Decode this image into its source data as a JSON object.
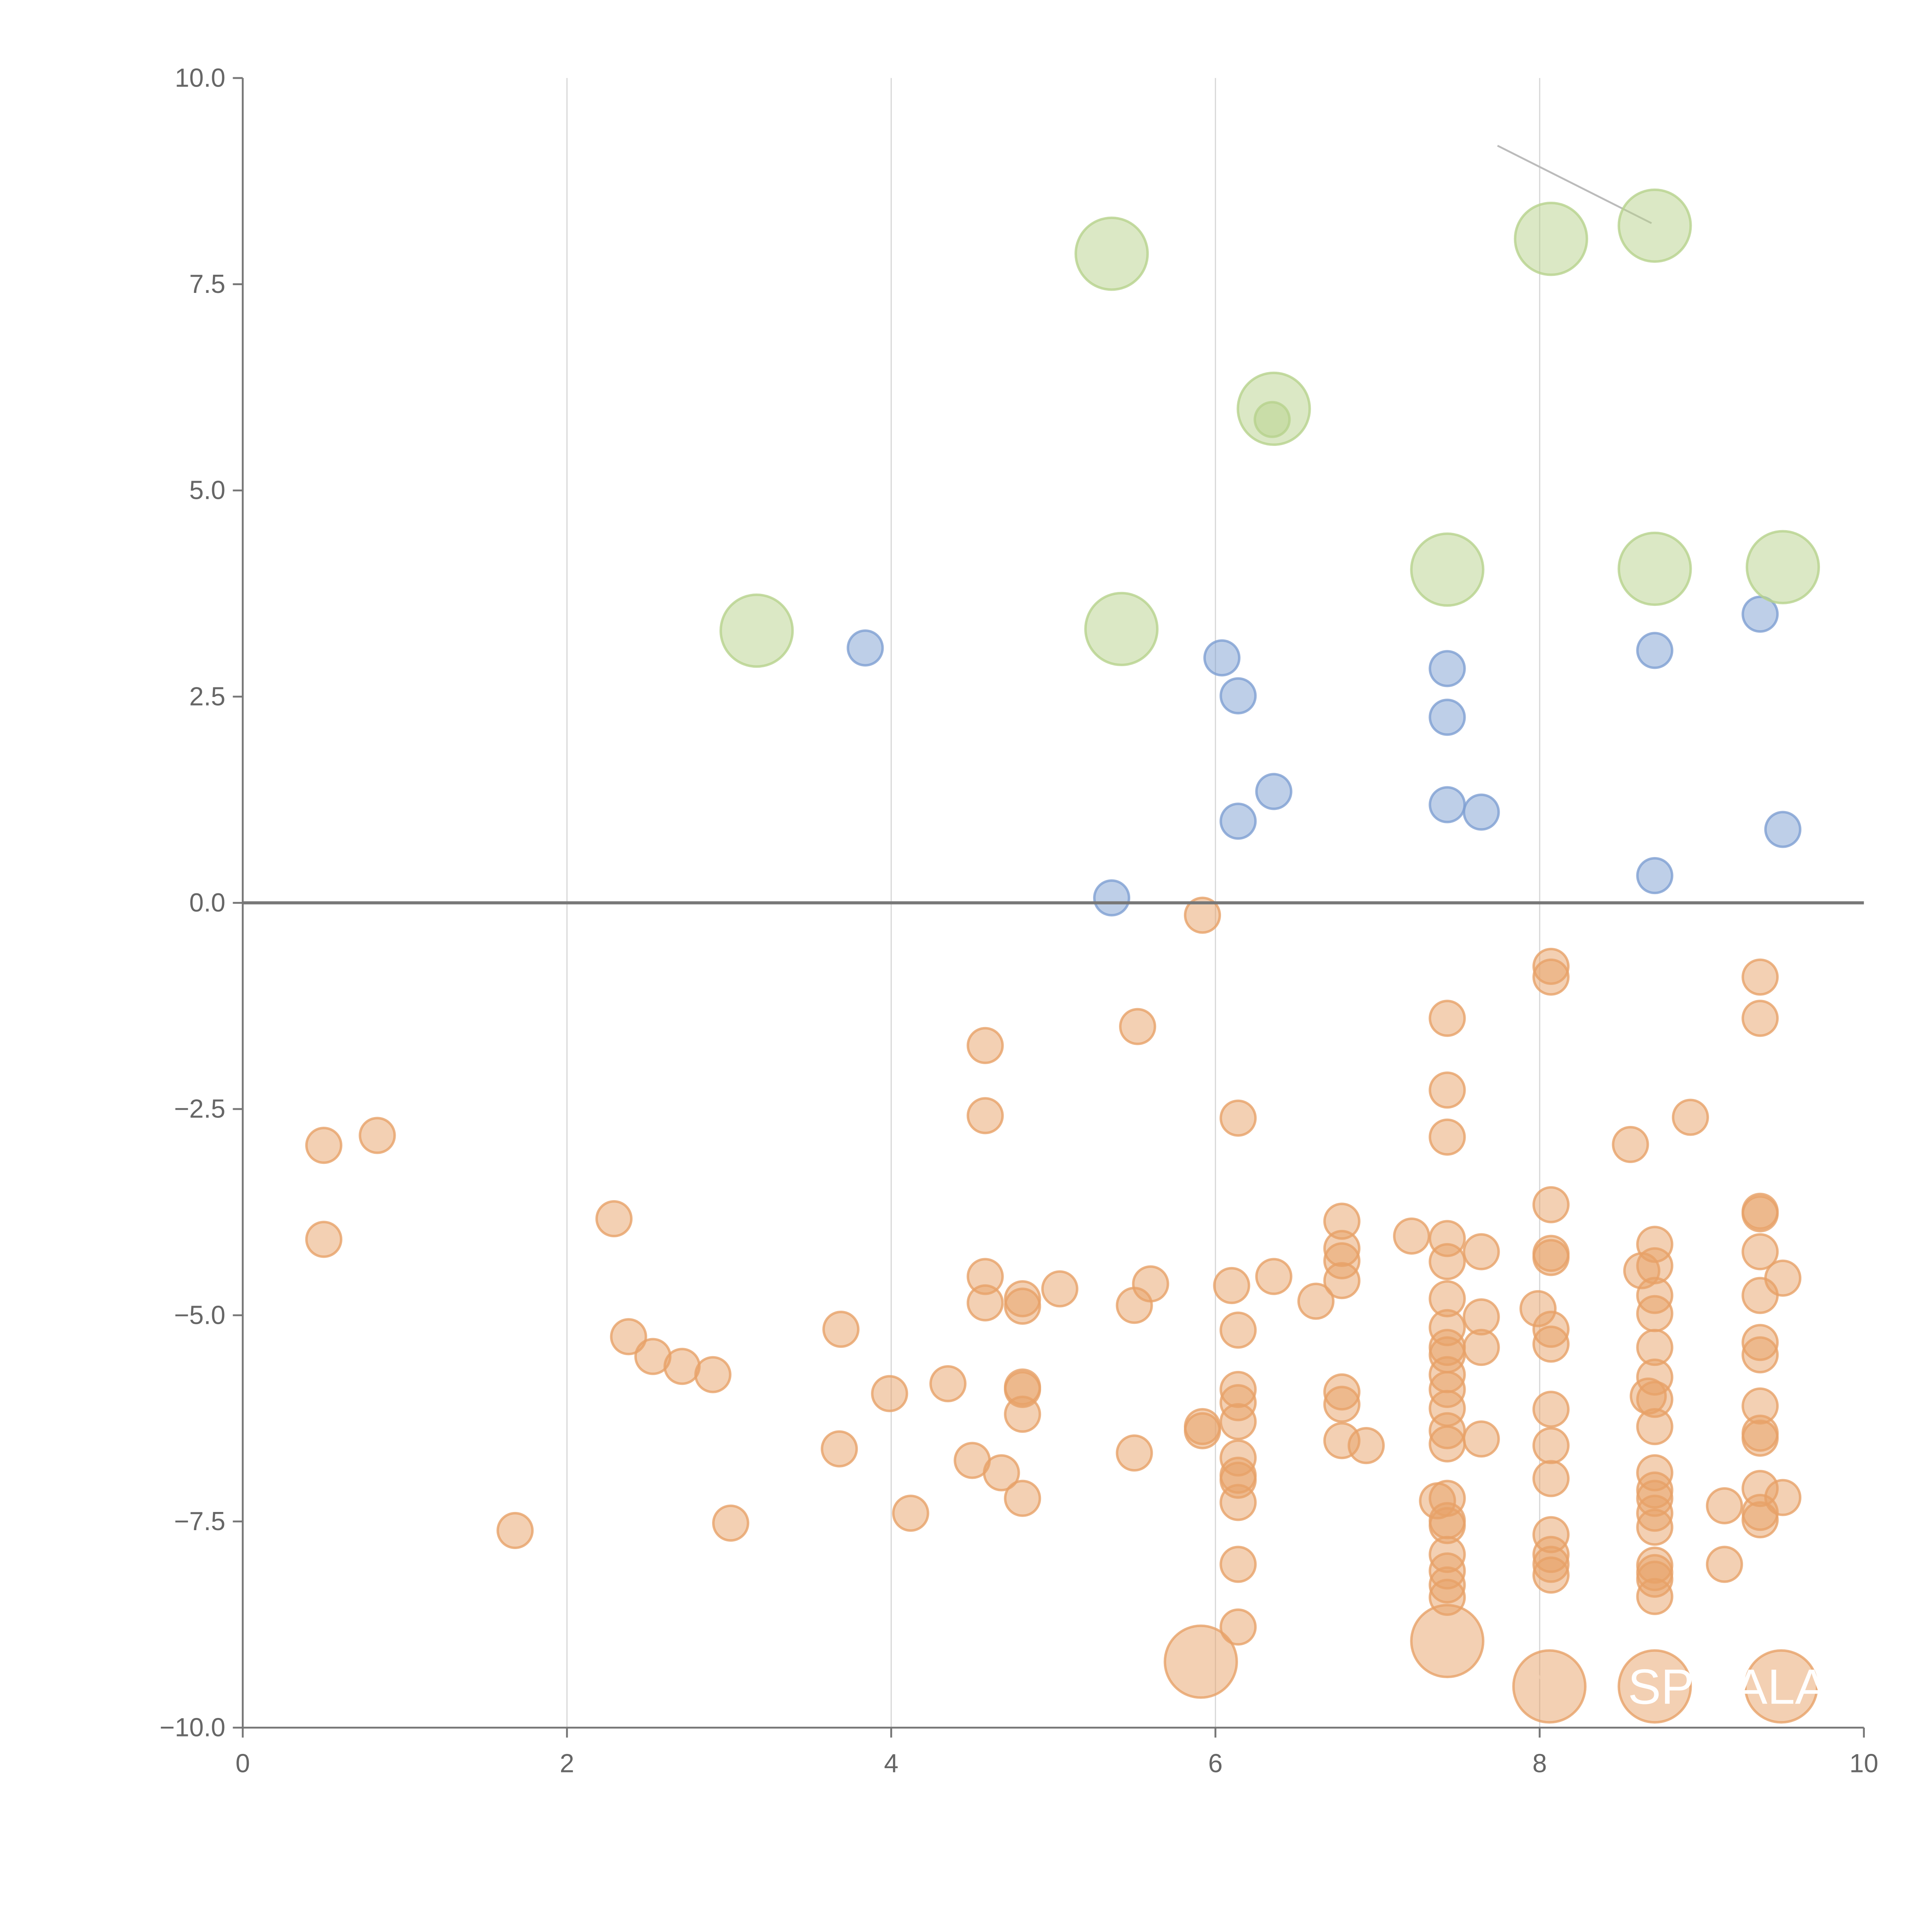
{
  "chart_data": {
    "type": "scatter",
    "title": "",
    "xlabel": "",
    "ylabel": "",
    "xlim": [
      0,
      10
    ],
    "ylim": [
      -10,
      10
    ],
    "grid": "vertical",
    "xticks": [
      "0",
      "2",
      "4",
      "6",
      "8",
      "10"
    ],
    "xtick_values": [
      0,
      2,
      4,
      6,
      8,
      10
    ],
    "yticks": [
      "10.0",
      "7.5",
      "5.0",
      "2.5",
      "0.0",
      "−2.5",
      "−5.0",
      "−7.5",
      "−10.0"
    ],
    "ytick_values": [
      10,
      7.5,
      5,
      2.5,
      0,
      -2.5,
      -5,
      -7.5,
      -10
    ],
    "colors": {
      "blue": "#7e9fd2",
      "green": "#b7d28c",
      "orange": "#e7a168",
      "axis": "#777777",
      "grid": "#d9d9d9"
    },
    "series": [
      {
        "name": "blue",
        "size": "small",
        "points": [
          [
            3.84,
            3.09
          ],
          [
            6.04,
            2.97
          ],
          [
            6.14,
            2.51
          ],
          [
            6.36,
            1.35
          ],
          [
            6.14,
            0.99
          ],
          [
            7.43,
            2.84
          ],
          [
            7.43,
            2.25
          ],
          [
            7.43,
            1.19
          ],
          [
            7.64,
            1.1
          ],
          [
            8.71,
            3.06
          ],
          [
            8.71,
            0.33
          ],
          [
            9.36,
            3.5
          ],
          [
            9.5,
            0.89
          ],
          [
            5.36,
            0.06
          ]
        ]
      },
      {
        "name": "green",
        "size": "large",
        "points": [
          [
            5.36,
            7.87
          ],
          [
            8.07,
            8.05
          ],
          [
            8.71,
            8.21
          ],
          [
            6.36,
            5.99
          ],
          [
            7.43,
            4.04
          ],
          [
            8.71,
            4.05
          ],
          [
            9.5,
            4.07
          ],
          [
            3.17,
            3.3
          ],
          [
            5.42,
            3.32
          ]
        ]
      },
      {
        "name": "green",
        "size": "small",
        "points": [
          [
            6.35,
            5.86
          ]
        ]
      },
      {
        "name": "orange",
        "size": "large",
        "points": [
          [
            5.91,
            -9.2
          ],
          [
            7.43,
            -8.95
          ],
          [
            8.06,
            -9.5
          ],
          [
            8.71,
            -9.5
          ],
          [
            9.49,
            -9.5
          ]
        ]
      },
      {
        "name": "orange",
        "size": "small",
        "points": [
          [
            5.92,
            -0.15
          ],
          [
            0.5,
            -2.94
          ],
          [
            0.83,
            -2.82
          ],
          [
            0.5,
            -4.08
          ],
          [
            2.29,
            -3.83
          ],
          [
            2.38,
            -5.26
          ],
          [
            2.53,
            -5.5
          ],
          [
            2.71,
            -5.62
          ],
          [
            2.9,
            -5.72
          ],
          [
            1.68,
            -7.61
          ],
          [
            3.01,
            -7.52
          ],
          [
            3.69,
            -5.17
          ],
          [
            3.68,
            -6.62
          ],
          [
            3.99,
            -5.95
          ],
          [
            4.35,
            -5.83
          ],
          [
            4.12,
            -7.4
          ],
          [
            4.5,
            -6.76
          ],
          [
            4.68,
            -6.91
          ],
          [
            4.58,
            -1.73
          ],
          [
            4.58,
            -2.58
          ],
          [
            4.58,
            -4.53
          ],
          [
            4.58,
            -4.85
          ],
          [
            4.81,
            -4.8
          ],
          [
            4.81,
            -4.89
          ],
          [
            4.81,
            -5.87
          ],
          [
            4.81,
            -5.9
          ],
          [
            4.81,
            -6.2
          ],
          [
            4.81,
            -7.22
          ],
          [
            5.04,
            -4.68
          ],
          [
            5.52,
            -1.5
          ],
          [
            5.5,
            -4.88
          ],
          [
            5.6,
            -4.62
          ],
          [
            5.5,
            -6.67
          ],
          [
            5.92,
            -6.35
          ],
          [
            5.92,
            -6.4
          ],
          [
            6.14,
            -2.61
          ],
          [
            6.1,
            -4.64
          ],
          [
            6.14,
            -5.18
          ],
          [
            6.14,
            -5.9
          ],
          [
            6.14,
            -6.06
          ],
          [
            6.14,
            -6.29
          ],
          [
            6.14,
            -6.73
          ],
          [
            6.14,
            -6.94
          ],
          [
            6.14,
            -7.0
          ],
          [
            6.14,
            -7.27
          ],
          [
            6.14,
            -8.02
          ],
          [
            6.14,
            -8.78
          ],
          [
            6.36,
            -4.53
          ],
          [
            6.62,
            -4.83
          ],
          [
            6.78,
            -3.86
          ],
          [
            6.78,
            -4.19
          ],
          [
            6.78,
            -4.34
          ],
          [
            6.78,
            -4.58
          ],
          [
            6.78,
            -5.93
          ],
          [
            6.78,
            -6.08
          ],
          [
            6.78,
            -6.52
          ],
          [
            6.93,
            -6.58
          ],
          [
            7.21,
            -4.04
          ],
          [
            7.43,
            -1.4
          ],
          [
            7.43,
            -2.27
          ],
          [
            7.43,
            -2.84
          ],
          [
            7.43,
            -4.07
          ],
          [
            7.43,
            -4.35
          ],
          [
            7.43,
            -4.8
          ],
          [
            7.43,
            -5.15
          ],
          [
            7.43,
            -5.39
          ],
          [
            7.43,
            -5.48
          ],
          [
            7.43,
            -5.72
          ],
          [
            7.43,
            -5.9
          ],
          [
            7.43,
            -6.13
          ],
          [
            7.43,
            -6.4
          ],
          [
            7.43,
            -6.56
          ],
          [
            7.43,
            -7.22
          ],
          [
            7.37,
            -7.25
          ],
          [
            7.43,
            -7.49
          ],
          [
            7.43,
            -7.55
          ],
          [
            7.43,
            -7.9
          ],
          [
            7.43,
            -8.1
          ],
          [
            7.43,
            -8.27
          ],
          [
            7.43,
            -8.42
          ],
          [
            7.64,
            -4.23
          ],
          [
            7.64,
            -5.02
          ],
          [
            7.64,
            -5.39
          ],
          [
            7.64,
            -6.5
          ],
          [
            7.99,
            -4.92
          ],
          [
            8.07,
            -0.77
          ],
          [
            8.07,
            -0.9
          ],
          [
            8.07,
            -3.66
          ],
          [
            8.07,
            -4.25
          ],
          [
            8.07,
            -4.3
          ],
          [
            8.07,
            -5.17
          ],
          [
            8.07,
            -5.35
          ],
          [
            8.07,
            -6.14
          ],
          [
            8.07,
            -6.58
          ],
          [
            8.07,
            -6.98
          ],
          [
            8.07,
            -7.66
          ],
          [
            8.07,
            -7.9
          ],
          [
            8.07,
            -8.02
          ],
          [
            8.07,
            -8.15
          ],
          [
            8.56,
            -2.93
          ],
          [
            8.63,
            -4.46
          ],
          [
            8.93,
            -2.6
          ],
          [
            8.71,
            -4.14
          ],
          [
            8.71,
            -4.4
          ],
          [
            8.71,
            -4.76
          ],
          [
            8.71,
            -4.98
          ],
          [
            8.71,
            -5.39
          ],
          [
            8.71,
            -5.75
          ],
          [
            8.67,
            -5.98
          ],
          [
            8.71,
            -6.02
          ],
          [
            8.71,
            -6.35
          ],
          [
            8.71,
            -6.91
          ],
          [
            8.71,
            -7.12
          ],
          [
            8.71,
            -7.22
          ],
          [
            8.71,
            -7.4
          ],
          [
            8.71,
            -7.57
          ],
          [
            8.71,
            -8.03
          ],
          [
            8.71,
            -8.12
          ],
          [
            8.71,
            -8.2
          ],
          [
            8.71,
            -8.41
          ],
          [
            9.14,
            -7.31
          ],
          [
            9.14,
            -8.02
          ],
          [
            9.36,
            -0.9
          ],
          [
            9.36,
            -1.4
          ],
          [
            9.36,
            -3.74
          ],
          [
            9.36,
            -3.77
          ],
          [
            9.36,
            -4.23
          ],
          [
            9.36,
            -4.76
          ],
          [
            9.36,
            -5.33
          ],
          [
            9.36,
            -5.48
          ],
          [
            9.36,
            -6.1
          ],
          [
            9.36,
            -6.43
          ],
          [
            9.36,
            -6.49
          ],
          [
            9.36,
            -7.1
          ],
          [
            9.36,
            -7.39
          ],
          [
            9.36,
            -7.48
          ],
          [
            9.5,
            -4.55
          ],
          [
            9.5,
            -7.21
          ]
        ]
      }
    ],
    "annotations": [
      {
        "text": "SP",
        "x": 8.71,
        "y": -9.5
      },
      {
        "text": "ALA",
        "x": 9.49,
        "y": -9.5
      }
    ],
    "connector_lines": [
      {
        "from": [
          7.74,
          9.18
        ],
        "to": [
          8.69,
          8.24
        ],
        "color": "#bbbbbb"
      },
      {
        "from": [
          5.39,
          7.87
        ],
        "to": [
          5.6,
          7.88
        ],
        "color": "#ffffff"
      },
      {
        "from": [
          8.07,
          8.05
        ],
        "to": [
          8.2,
          7.8
        ],
        "color": "#ffffff"
      },
      {
        "from": [
          6.36,
          5.99
        ],
        "to": [
          6.1,
          5.99
        ],
        "color": "#ffffff"
      },
      {
        "from": [
          8.71,
          4.05
        ],
        "to": [
          8.58,
          3.8
        ],
        "color": "#ffffff"
      },
      {
        "from": [
          9.5,
          4.07
        ],
        "to": [
          9.38,
          4.4
        ],
        "color": "#ffffff"
      },
      {
        "from": [
          3.17,
          3.3
        ],
        "to": [
          3.28,
          3.55
        ],
        "color": "#ffffff"
      },
      {
        "from": [
          5.42,
          3.32
        ],
        "to": [
          5.3,
          3.1
        ],
        "color": "#ffffff"
      },
      {
        "from": [
          5.91,
          -9.2
        ],
        "to": [
          5.75,
          -9.0
        ],
        "color": "#ffffff"
      },
      {
        "from": [
          7.43,
          -8.95
        ],
        "to": [
          7.25,
          -9.05
        ],
        "color": "#ffffff"
      },
      {
        "from": [
          8.06,
          -9.5
        ],
        "to": [
          7.9,
          -9.2
        ],
        "color": "#ffffff"
      },
      {
        "from": [
          7.43,
          -8.3
        ],
        "to": [
          7.3,
          -8.0
        ],
        "color": "#ffffff"
      }
    ]
  }
}
